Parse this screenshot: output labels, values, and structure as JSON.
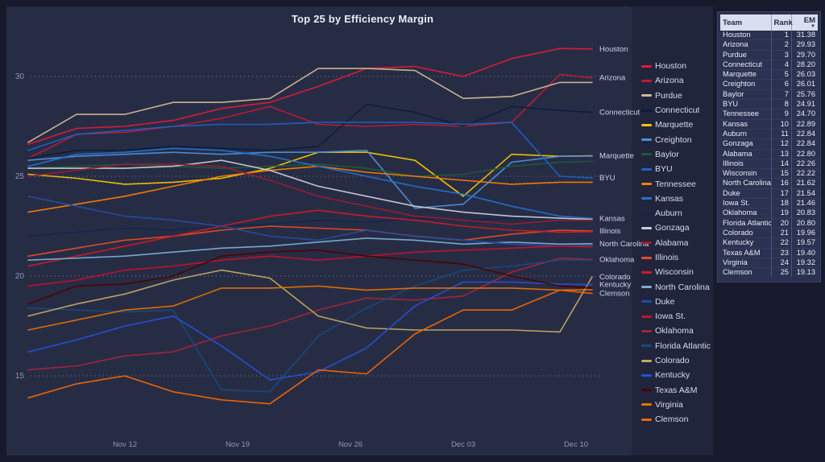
{
  "title": "Top 25 by Efficiency Margin",
  "colors": {
    "page_bg": "#161a2c",
    "chart_panel_bg": "#272c45",
    "legend_panel_bg": "#20253c",
    "table_panel_bg": "#2b3150",
    "table_header_bg": "#d8dfee",
    "grid_dots": "#b9c0d4",
    "axis_text": "#8f97b2",
    "end_label_text": "#ccd3e3",
    "title_text": "#e9edf6"
  },
  "chart_data": {
    "type": "line",
    "title": "Top 25 by Efficiency Margin",
    "x_axis_tick_labels": [
      "Nov 12",
      "Nov 19",
      "Nov 26",
      "Dec 03",
      "Dec 10"
    ],
    "y_axis_tick_labels": [
      30,
      25,
      20,
      15
    ],
    "ylim": [
      12.6,
      32.4
    ],
    "x_dates": [
      "Nov 06",
      "Nov 09",
      "Nov 12",
      "Nov 15",
      "Nov 18",
      "Nov 21",
      "Nov 24",
      "Nov 27",
      "Nov 30",
      "Dec 03",
      "Dec 06",
      "Dec 09",
      "Dec 11"
    ],
    "x_day_offsets": [
      0,
      3,
      6,
      9,
      12,
      15,
      18,
      21,
      24,
      27,
      30,
      33,
      35
    ],
    "grid": "dotted-horizontal",
    "legend_position": "right",
    "series": [
      {
        "name": "Houston",
        "color": "#e41937",
        "right_label": true,
        "values": [
          26.6,
          27.4,
          27.5,
          27.8,
          28.4,
          28.7,
          29.5,
          30.4,
          30.5,
          30.0,
          30.9,
          31.4,
          31.38
        ]
      },
      {
        "name": "Arizona",
        "color": "#c01933",
        "right_label": true,
        "values": [
          25.9,
          27.1,
          27.2,
          27.5,
          27.9,
          28.5,
          27.6,
          27.5,
          27.6,
          27.5,
          27.7,
          30.1,
          29.93
        ]
      },
      {
        "name": "Purdue",
        "color": "#cfb991",
        "right_label": false,
        "values": [
          26.7,
          28.1,
          28.1,
          28.7,
          28.7,
          28.9,
          30.4,
          30.4,
          30.3,
          28.9,
          29.0,
          29.7,
          29.7
        ]
      },
      {
        "name": "Connecticut",
        "color": "#0d1b3e",
        "right_label": true,
        "values": [
          25.9,
          26.3,
          26.3,
          26.5,
          26.4,
          26.3,
          26.5,
          28.6,
          28.2,
          27.5,
          28.5,
          28.3,
          28.2
        ]
      },
      {
        "name": "Marquette",
        "color": "#f5c400",
        "right_label": true,
        "values": [
          25.1,
          24.9,
          24.6,
          24.7,
          24.9,
          25.4,
          26.2,
          26.2,
          25.8,
          24.0,
          26.1,
          26.0,
          26.03
        ]
      },
      {
        "name": "Creighton",
        "color": "#4a90d9",
        "right_label": false,
        "values": [
          25.8,
          26.0,
          26.1,
          26.2,
          26.1,
          26.2,
          26.2,
          26.3,
          23.4,
          23.6,
          25.7,
          26.0,
          26.01
        ]
      },
      {
        "name": "Baylor",
        "color": "#1d5c38",
        "right_label": false,
        "values": [
          25.4,
          25.5,
          25.6,
          25.5,
          25.4,
          25.5,
          25.6,
          25.4,
          25.0,
          25.1,
          25.5,
          25.7,
          25.76
        ]
      },
      {
        "name": "BYU",
        "color": "#1f61c9",
        "right_label": true,
        "values": [
          26.3,
          27.1,
          27.3,
          27.5,
          27.6,
          27.6,
          27.7,
          27.7,
          27.7,
          27.6,
          27.7,
          25.0,
          24.91
        ]
      },
      {
        "name": "Tennessee",
        "color": "#f77f00",
        "right_label": false,
        "values": [
          23.2,
          23.6,
          24.0,
          24.5,
          25.0,
          25.3,
          25.5,
          25.2,
          25.0,
          24.8,
          24.6,
          24.7,
          24.7
        ]
      },
      {
        "name": "Kansas",
        "color": "#2272d0",
        "right_label": true,
        "values": [
          25.5,
          26.1,
          26.2,
          26.4,
          26.3,
          26.0,
          25.5,
          25.0,
          24.5,
          24.1,
          23.5,
          23.0,
          22.89
        ]
      },
      {
        "name": "Auburn",
        "color": "#12264d",
        "right_label": false,
        "values": [
          22.0,
          22.2,
          22.4,
          22.3,
          22.5,
          22.6,
          22.8,
          22.7,
          22.9,
          22.8,
          22.9,
          22.9,
          22.84
        ]
      },
      {
        "name": "Gonzaga",
        "color": "#c8cdd4",
        "right_label": false,
        "values": [
          25.4,
          25.4,
          25.4,
          25.5,
          25.8,
          25.3,
          24.5,
          24.0,
          23.5,
          23.2,
          23.0,
          22.9,
          22.84
        ]
      },
      {
        "name": "Alabama",
        "color": "#9e1b32",
        "right_label": false,
        "values": [
          25.0,
          25.3,
          25.6,
          25.6,
          25.5,
          24.8,
          24.0,
          23.5,
          23.0,
          22.8,
          22.6,
          22.8,
          22.8
        ]
      },
      {
        "name": "Illinois",
        "color": "#e84a27",
        "right_label": true,
        "values": [
          21.0,
          21.4,
          21.8,
          22.0,
          22.3,
          22.5,
          22.4,
          22.3,
          22.0,
          21.8,
          22.1,
          22.3,
          22.26
        ]
      },
      {
        "name": "Wisconsin",
        "color": "#d11a24",
        "right_label": false,
        "values": [
          20.5,
          21.0,
          21.5,
          22.0,
          22.5,
          23.0,
          23.3,
          23.0,
          22.8,
          22.5,
          22.3,
          22.2,
          22.22
        ]
      },
      {
        "name": "North Carolina",
        "color": "#7bafd4",
        "right_label": true,
        "values": [
          20.8,
          20.9,
          21.0,
          21.2,
          21.4,
          21.5,
          21.7,
          21.9,
          21.8,
          21.6,
          21.7,
          21.6,
          21.62
        ]
      },
      {
        "name": "Duke",
        "color": "#234ea0",
        "right_label": false,
        "values": [
          24.0,
          23.5,
          23.0,
          22.8,
          22.5,
          22.0,
          21.8,
          22.3,
          22.0,
          21.8,
          21.6,
          21.5,
          21.54
        ]
      },
      {
        "name": "Iowa St.",
        "color": "#c8102e",
        "right_label": false,
        "values": [
          19.5,
          19.8,
          20.3,
          20.5,
          20.8,
          21.0,
          20.8,
          21.0,
          21.2,
          21.3,
          21.4,
          21.5,
          21.46
        ]
      },
      {
        "name": "Oklahoma",
        "color": "#a32638",
        "right_label": true,
        "values": [
          15.3,
          15.5,
          16.0,
          16.2,
          17.0,
          17.5,
          18.3,
          18.9,
          18.8,
          19.0,
          20.2,
          20.9,
          20.83
        ]
      },
      {
        "name": "Florida Atlantic",
        "color": "#174a7c",
        "right_label": false,
        "values": [
          18.4,
          18.3,
          18.2,
          18.3,
          14.3,
          14.2,
          17.0,
          18.4,
          19.5,
          20.3,
          20.5,
          20.8,
          20.8
        ]
      },
      {
        "name": "Colorado",
        "color": "#c5a95f",
        "right_label": true,
        "values": [
          18.0,
          18.6,
          19.1,
          19.8,
          20.3,
          19.9,
          18.0,
          17.4,
          17.3,
          17.3,
          17.3,
          17.2,
          19.96
        ]
      },
      {
        "name": "Kentucky",
        "color": "#2451d8",
        "right_label": true,
        "values": [
          16.2,
          16.8,
          17.5,
          18.0,
          16.5,
          14.8,
          15.2,
          16.4,
          18.5,
          19.7,
          19.7,
          19.6,
          19.57
        ]
      },
      {
        "name": "Texas A&M",
        "color": "#500000",
        "right_label": false,
        "values": [
          18.6,
          19.5,
          19.6,
          20.0,
          21.0,
          21.2,
          21.3,
          21.0,
          20.8,
          20.6,
          20.0,
          19.5,
          19.4
        ]
      },
      {
        "name": "Virginia",
        "color": "#e57200",
        "right_label": false,
        "values": [
          17.3,
          17.8,
          18.3,
          18.5,
          19.4,
          19.4,
          19.5,
          19.3,
          19.4,
          19.4,
          19.4,
          19.3,
          19.32
        ]
      },
      {
        "name": "Clemson",
        "color": "#f56600",
        "right_label": true,
        "values": [
          13.9,
          14.6,
          15.0,
          14.2,
          13.8,
          13.6,
          15.3,
          15.1,
          17.1,
          18.3,
          18.3,
          19.3,
          19.13
        ]
      }
    ]
  },
  "table": {
    "columns": [
      "Team",
      "Rank",
      "EM"
    ],
    "sort": {
      "column": "EM",
      "direction": "desc",
      "icon": "▼"
    },
    "rows": [
      [
        "Houston",
        1,
        "31.38"
      ],
      [
        "Arizona",
        2,
        "29.93"
      ],
      [
        "Purdue",
        3,
        "29.70"
      ],
      [
        "Connecticut",
        4,
        "28.20"
      ],
      [
        "Marquette",
        5,
        "26.03"
      ],
      [
        "Creighton",
        6,
        "26.01"
      ],
      [
        "Baylor",
        7,
        "25.76"
      ],
      [
        "BYU",
        8,
        "24.91"
      ],
      [
        "Tennessee",
        9,
        "24.70"
      ],
      [
        "Kansas",
        10,
        "22.89"
      ],
      [
        "Auburn",
        11,
        "22.84"
      ],
      [
        "Gonzaga",
        12,
        "22.84"
      ],
      [
        "Alabama",
        13,
        "22.80"
      ],
      [
        "Illinois",
        14,
        "22.26"
      ],
      [
        "Wisconsin",
        15,
        "22.22"
      ],
      [
        "North Carolina",
        16,
        "21.62"
      ],
      [
        "Duke",
        17,
        "21.54"
      ],
      [
        "Iowa St.",
        18,
        "21.46"
      ],
      [
        "Oklahoma",
        19,
        "20.83"
      ],
      [
        "Florida Atlantic",
        20,
        "20.80"
      ],
      [
        "Colorado",
        21,
        "19.96"
      ],
      [
        "Kentucky",
        22,
        "19.57"
      ],
      [
        "Texas A&M",
        23,
        "19.40"
      ],
      [
        "Virginia",
        24,
        "19.32"
      ],
      [
        "Clemson",
        25,
        "19.13"
      ]
    ]
  }
}
